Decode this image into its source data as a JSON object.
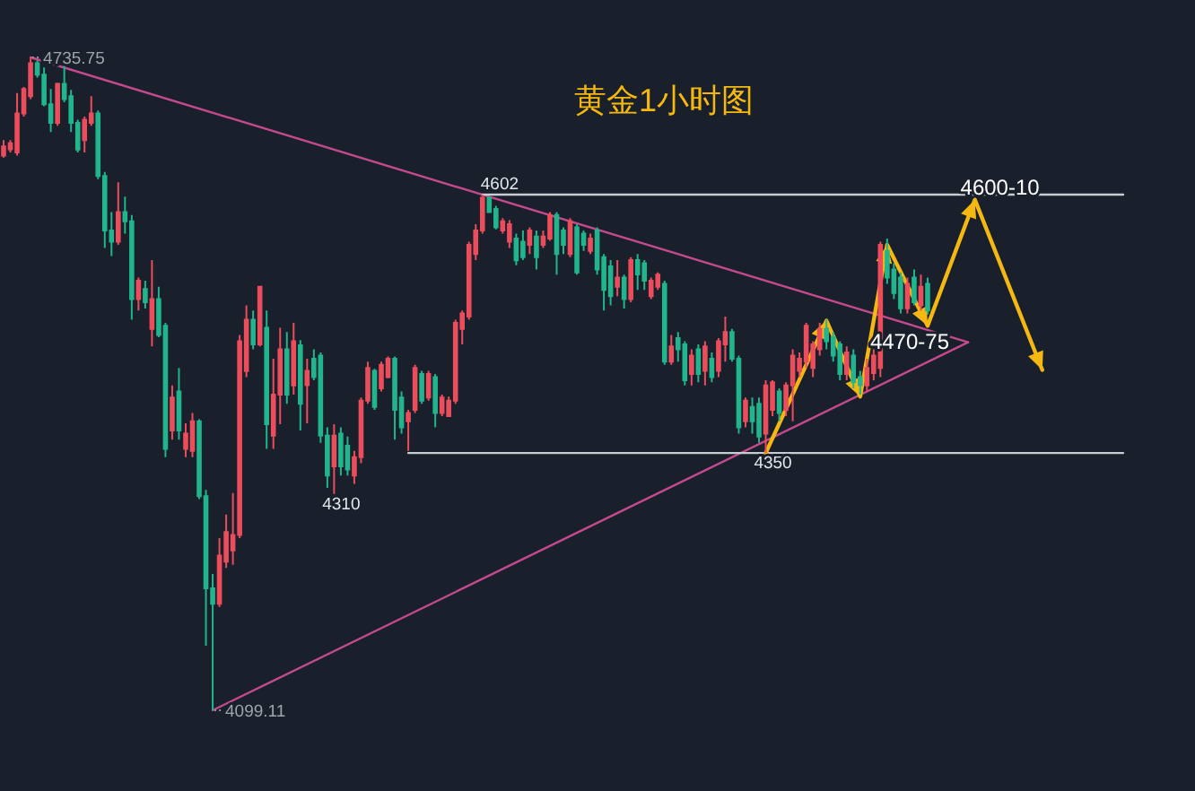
{
  "chart_data": {
    "type": "candlestick",
    "title": "黄金1小时图",
    "categories": [
      null,
      null,
      null,
      null,
      null,
      null,
      null,
      null,
      null,
      null,
      null,
      null,
      null,
      null,
      null,
      null,
      null,
      null,
      null,
      null,
      null,
      null,
      null,
      null,
      null,
      null,
      null,
      null,
      null,
      null,
      null,
      null,
      null,
      null,
      null,
      null,
      null,
      null,
      null,
      null,
      null,
      null,
      null,
      null,
      null,
      null,
      null,
      null,
      null,
      null,
      null,
      null,
      null,
      null,
      null,
      null,
      null,
      null,
      null,
      null,
      null,
      null,
      null,
      null,
      null,
      null,
      null,
      null,
      null,
      null,
      null,
      null,
      null,
      null,
      null,
      null,
      null,
      null,
      null,
      null,
      null,
      null,
      null,
      null,
      null,
      null,
      null,
      null,
      null,
      null,
      null,
      null,
      null,
      null,
      null,
      null,
      null,
      null,
      null,
      null,
      null,
      null,
      null,
      null,
      null,
      null,
      null,
      null,
      null,
      null,
      null,
      null,
      null,
      null,
      null,
      null,
      null,
      null,
      null,
      null,
      null,
      null,
      null,
      null,
      null,
      null,
      null,
      null,
      null,
      null,
      null,
      null,
      null,
      null,
      null,
      null,
      null,
      null,
      null,
      null,
      null,
      null,
      null,
      null,
      null,
      null,
      null,
      null,
      null,
      null,
      null,
      null,
      null,
      null,
      null,
      null,
      null,
      null,
      null,
      null,
      null,
      null,
      null,
      null,
      null,
      null,
      null
    ],
    "ohlc": [
      [
        4640,
        4655,
        4638,
        4649
      ],
      [
        4646,
        4655,
        4643,
        4652
      ],
      [
        4643,
        4701,
        4640,
        4681
      ],
      [
        4681,
        4707,
        4678,
        4705
      ],
      [
        4698,
        4735.75,
        4695,
        4730
      ],
      [
        4730,
        4733,
        4716,
        4719
      ],
      [
        4719,
        4726,
        4688,
        4690
      ],
      [
        4690,
        4705,
        4663,
        4672
      ],
      [
        4672,
        4711,
        4669,
        4710
      ],
      [
        4710,
        4730,
        4692,
        4695
      ],
      [
        4698,
        4704,
        4663,
        4672
      ],
      [
        4672,
        4675,
        4643,
        4646
      ],
      [
        4655,
        4678,
        4643,
        4675
      ],
      [
        4672,
        4698,
        4669,
        4681
      ],
      [
        4681,
        4684,
        4617,
        4620
      ],
      [
        4620,
        4624,
        4550,
        4567
      ],
      [
        4567,
        4585,
        4542,
        4556
      ],
      [
        4556,
        4614,
        4553,
        4585
      ],
      [
        4585,
        4600,
        4564,
        4576
      ],
      [
        4576,
        4582,
        4480,
        4500
      ],
      [
        4500,
        4521,
        4489,
        4518
      ],
      [
        4510,
        4518,
        4491,
        4497
      ],
      [
        4471,
        4538,
        4454,
        4500
      ],
      [
        4500,
        4512,
        4463,
        4465
      ],
      [
        4474,
        4477,
        4346,
        4354
      ],
      [
        4372,
        4416,
        4363,
        4404
      ],
      [
        4410,
        4433,
        4363,
        4372
      ],
      [
        4354,
        4379,
        4346,
        4369
      ],
      [
        4352,
        4389,
        4346,
        4381
      ],
      [
        4381,
        4383,
        4305,
        4308
      ],
      [
        4308,
        4314,
        4162,
        4218
      ],
      [
        4218,
        4232,
        4099.11,
        4203
      ],
      [
        4203,
        4267,
        4200,
        4250
      ],
      [
        4244,
        4290,
        4238,
        4273
      ],
      [
        4255,
        4311,
        4241,
        4270
      ],
      [
        4270,
        4465,
        4267,
        4459
      ],
      [
        4430,
        4494,
        4424,
        4480
      ],
      [
        4480,
        4489,
        4451,
        4456
      ],
      [
        4456,
        4513,
        4454,
        4512
      ],
      [
        4472,
        4489,
        4354,
        4378
      ],
      [
        4367,
        4442,
        4354,
        4407
      ],
      [
        4407,
        4472,
        4378,
        4451
      ],
      [
        4451,
        4468,
        4398,
        4407
      ],
      [
        4416,
        4477,
        4407,
        4459
      ],
      [
        4455,
        4460,
        4372,
        4398
      ],
      [
        4416,
        4442,
        4379,
        4430
      ],
      [
        4442,
        4451,
        4421,
        4424
      ],
      [
        4445,
        4448,
        4360,
        4367
      ],
      [
        4367,
        4375,
        4316,
        4328
      ],
      [
        4337,
        4378,
        4310,
        4367
      ],
      [
        4369,
        4375,
        4328,
        4337
      ],
      [
        4357,
        4366,
        4328,
        4334
      ],
      [
        4328,
        4352,
        4320,
        4346
      ],
      [
        4346,
        4404,
        4340,
        4401
      ],
      [
        4401,
        4439,
        4398,
        4433
      ],
      [
        4430,
        4432,
        4392,
        4395
      ],
      [
        4413,
        4439,
        4410,
        4436
      ],
      [
        4424,
        4444,
        4423,
        4442
      ],
      [
        4442,
        4444,
        4363,
        4392
      ],
      [
        4404,
        4410,
        4369,
        4375
      ],
      [
        4381,
        4392,
        4352,
        4389
      ],
      [
        4392,
        4436,
        4389,
        4433
      ],
      [
        4427,
        4430,
        4398,
        4401
      ],
      [
        4404,
        4430,
        4401,
        4427
      ],
      [
        4424,
        4427,
        4375,
        4389
      ],
      [
        4389,
        4407,
        4386,
        4404
      ],
      [
        4386,
        4405,
        4385,
        4401
      ],
      [
        4401,
        4480,
        4398,
        4477
      ],
      [
        4471,
        4489,
        4456,
        4486
      ],
      [
        4483,
        4556,
        4480,
        4553
      ],
      [
        4544,
        4573,
        4538,
        4567
      ],
      [
        4567,
        4602,
        4564,
        4599
      ],
      [
        4599,
        4600,
        4584,
        4585
      ],
      [
        4588,
        4591,
        4568,
        4570
      ],
      [
        4567,
        4579,
        4564,
        4576
      ],
      [
        4556,
        4577,
        4550,
        4573
      ],
      [
        4559,
        4564,
        4533,
        4538
      ],
      [
        4556,
        4567,
        4538,
        4541
      ],
      [
        4553,
        4570,
        4544,
        4567
      ],
      [
        4561,
        4567,
        4529,
        4541
      ],
      [
        4553,
        4567,
        4550,
        4561
      ],
      [
        4559,
        4585,
        4557,
        4582
      ],
      [
        4582,
        4585,
        4524,
        4544
      ],
      [
        4567,
        4570,
        4544,
        4553
      ],
      [
        4544,
        4579,
        4541,
        4576
      ],
      [
        4570,
        4573,
        4524,
        4526
      ],
      [
        4564,
        4567,
        4547,
        4553
      ],
      [
        4547,
        4564,
        4544,
        4559
      ],
      [
        4567,
        4570,
        4524,
        4529
      ],
      [
        4541,
        4544,
        4489,
        4509
      ],
      [
        4532,
        4538,
        4494,
        4503
      ],
      [
        4512,
        4538,
        4503,
        4521
      ],
      [
        4521,
        4524,
        4491,
        4500
      ],
      [
        4500,
        4541,
        4497,
        4538
      ],
      [
        4538,
        4544,
        4509,
        4524
      ],
      [
        4535,
        4538,
        4509,
        4518
      ],
      [
        4503,
        4521,
        4500,
        4518
      ],
      [
        4512,
        4526,
        4509,
        4524
      ],
      [
        4515,
        4518,
        4436,
        4439
      ],
      [
        4439,
        4465,
        4436,
        4454
      ],
      [
        4462,
        4468,
        4439,
        4451
      ],
      [
        4456,
        4459,
        4416,
        4421
      ],
      [
        4427,
        4451,
        4416,
        4445
      ],
      [
        4451,
        4456,
        4419,
        4427
      ],
      [
        4430,
        4459,
        4416,
        4454
      ],
      [
        4442,
        4448,
        4419,
        4424
      ],
      [
        4430,
        4462,
        4424,
        4459
      ],
      [
        4456,
        4483,
        4439,
        4468
      ],
      [
        4468,
        4471,
        4439,
        4442
      ],
      [
        4442,
        4445,
        4369,
        4375
      ],
      [
        4381,
        4404,
        4375,
        4401
      ],
      [
        4395,
        4404,
        4369,
        4381
      ],
      [
        4398,
        4404,
        4360,
        4366
      ],
      [
        4369,
        4421,
        4350,
        4416
      ],
      [
        4392,
        4421,
        4386,
        4419
      ],
      [
        4410,
        4413,
        4381,
        4389
      ],
      [
        4392,
        4419,
        4386,
        4416
      ],
      [
        4416,
        4451,
        4381,
        4445
      ],
      [
        4430,
        4448,
        4424,
        4442
      ],
      [
        4439,
        4477,
        4433,
        4474
      ],
      [
        4433,
        4459,
        4424,
        4456
      ],
      [
        4451,
        4477,
        4445,
        4471
      ],
      [
        4471,
        4480,
        4451,
        4459
      ],
      [
        4463,
        4468,
        4439,
        4445
      ],
      [
        4456,
        4459,
        4421,
        4427
      ],
      [
        4427,
        4454,
        4421,
        4448
      ],
      [
        4445,
        4451,
        4413,
        4419
      ],
      [
        4424,
        4430,
        4407,
        4416
      ],
      [
        4416,
        4442,
        4410,
        4433
      ],
      [
        4428,
        4451,
        4421,
        4445
      ],
      [
        4433,
        4556,
        4424,
        4553
      ],
      [
        4547,
        4559,
        4515,
        4521
      ],
      [
        4529,
        4535,
        4500,
        4506
      ],
      [
        4521,
        4526,
        4486,
        4491
      ],
      [
        4491,
        4521,
        4486,
        4515
      ],
      [
        4521,
        4529,
        4494,
        4497
      ],
      [
        4494,
        4524,
        4489,
        4512
      ],
      [
        4515,
        4521,
        4485,
        4489
      ],
      null,
      null,
      null,
      null,
      null,
      null,
      null,
      null,
      null,
      null,
      null,
      null,
      null,
      null,
      null,
      null,
      null,
      null,
      null,
      null,
      null,
      null,
      null,
      null,
      null,
      null,
      null,
      null,
      null
    ],
    "colors": [
      "#eb4d5c",
      "#eb4d5c",
      "#eb4d5c",
      "#eb4d5c",
      "#eb4d5c",
      "#22b48c",
      "#22b48c",
      "#22b48c",
      "#eb4d5c",
      "#22b48c",
      "#22b48c",
      "#22b48c",
      "#eb4d5c",
      "#eb4d5c",
      "#22b48c",
      "#22b48c",
      "#22b48c",
      "#eb4d5c",
      "#22b48c",
      "#22b48c",
      "#eb4d5c",
      "#22b48c",
      "#eb4d5c",
      "#22b48c",
      "#22b48c",
      "#eb4d5c",
      "#22b48c",
      "#eb4d5c",
      "#eb4d5c",
      "#22b48c",
      "#22b48c",
      "#22b48c",
      "#eb4d5c",
      "#eb4d5c",
      "#eb4d5c",
      "#eb4d5c",
      "#eb4d5c",
      "#22b48c",
      "#eb4d5c",
      "#22b48c",
      "#eb4d5c",
      "#eb4d5c",
      "#22b48c",
      "#eb4d5c",
      "#22b48c",
      "#eb4d5c",
      "#22b48c",
      "#22b48c",
      "#22b48c",
      "#eb4d5c",
      "#22b48c",
      "#22b48c",
      "#eb4d5c",
      "#eb4d5c",
      "#eb4d5c",
      "#22b48c",
      "#eb4d5c",
      "#eb4d5c",
      "#22b48c",
      "#22b48c",
      "#eb4d5c",
      "#eb4d5c",
      "#22b48c",
      "#eb4d5c",
      "#22b48c",
      "#eb4d5c",
      "#eb4d5c",
      "#eb4d5c",
      "#eb4d5c",
      "#eb4d5c",
      "#eb4d5c",
      "#eb4d5c",
      "#22b48c",
      "#22b48c",
      "#eb4d5c",
      "#eb4d5c",
      "#22b48c",
      "#22b48c",
      "#eb4d5c",
      "#22b48c",
      "#eb4d5c",
      "#eb4d5c",
      "#22b48c",
      "#22b48c",
      "#eb4d5c",
      "#22b48c",
      "#22b48c",
      "#eb4d5c",
      "#22b48c",
      "#22b48c",
      "#22b48c",
      "#eb4d5c",
      "#22b48c",
      "#eb4d5c",
      "#22b48c",
      "#22b48c",
      "#eb4d5c",
      "#eb4d5c",
      "#22b48c",
      "#eb4d5c",
      "#22b48c",
      "#22b48c",
      "#eb4d5c",
      "#22b48c",
      "#eb4d5c",
      "#22b48c",
      "#eb4d5c",
      "#eb4d5c",
      "#22b48c",
      "#22b48c",
      "#eb4d5c",
      "#22b48c",
      "#22b48c",
      "#eb4d5c",
      "#eb4d5c",
      "#22b48c",
      "#eb4d5c",
      "#eb4d5c",
      "#eb4d5c",
      "#eb4d5c",
      "#eb4d5c",
      "#eb4d5c",
      "#22b48c",
      "#22b48c",
      "#22b48c",
      "#eb4d5c",
      "#22b48c",
      "#22b48c",
      "#eb4d5c",
      "#eb4d5c",
      "#eb4d5c",
      "#22b48c",
      "#22b48c",
      "#22b48c",
      "#eb4d5c",
      "#22b48c",
      "#eb4d5c",
      "#22b48c",
      null,
      null,
      null,
      null,
      null,
      null,
      null,
      null,
      null,
      null,
      null,
      null,
      null,
      null,
      null,
      null,
      null,
      null,
      null,
      null,
      null,
      null,
      null,
      null,
      null,
      null,
      null,
      null,
      null
    ],
    "value_labels": [
      null,
      null,
      null,
      null,
      "4735.75",
      null,
      null,
      null,
      null,
      null,
      null,
      null,
      null,
      null,
      null,
      null,
      null,
      null,
      null,
      null,
      null,
      null,
      null,
      null,
      null,
      null,
      null,
      null,
      null,
      null,
      null,
      "4099.11",
      null,
      null,
      null,
      null,
      null,
      null,
      null,
      null,
      null,
      null,
      null,
      null,
      null,
      null,
      null,
      null,
      null,
      "4310",
      null,
      null,
      null,
      null,
      null,
      null,
      null,
      null,
      null,
      null,
      null,
      null,
      null,
      null,
      null,
      null,
      null,
      null,
      null,
      null,
      null,
      "4602",
      null,
      null,
      null,
      null,
      null,
      null,
      null,
      null,
      null,
      null,
      null,
      null,
      null,
      null,
      null,
      null,
      null,
      null,
      null,
      null,
      null,
      null,
      null,
      null,
      null,
      null,
      null,
      null,
      null,
      null,
      null,
      null,
      null,
      null,
      null,
      null,
      null,
      null,
      null,
      null,
      null,
      "4350",
      null,
      null,
      null,
      null,
      null,
      null,
      null,
      null,
      null,
      null,
      null,
      null,
      null,
      null,
      null,
      null,
      null,
      null,
      null,
      null,
      null,
      null,
      null,
      null,
      null,
      null,
      null,
      null,
      null,
      null,
      null,
      null,
      null,
      null,
      null,
      null,
      null,
      null,
      null,
      null,
      null,
      null,
      null,
      null,
      null,
      null,
      null,
      null,
      null,
      null,
      null,
      null,
      null
    ],
    "series": [
      {
        "type": "line",
        "color": "#c44a8d",
        "values": [
          null,
          null,
          null,
          null,
          4735.75,
          null,
          null,
          null,
          null,
          null,
          null,
          null,
          null,
          null,
          null,
          null,
          null,
          null,
          null,
          null,
          null,
          null,
          null,
          null,
          null,
          null,
          null,
          null,
          null,
          null,
          null,
          null,
          null,
          null,
          null,
          null,
          null,
          null,
          null,
          null,
          null,
          null,
          null,
          null,
          null,
          null,
          null,
          null,
          null,
          null,
          null,
          null,
          null,
          null,
          null,
          null,
          null,
          null,
          null,
          null,
          null,
          null,
          null,
          null,
          null,
          null,
          null,
          null,
          null,
          null,
          null,
          null,
          null,
          null,
          null,
          null,
          null,
          null,
          null,
          null,
          null,
          null,
          null,
          null,
          null,
          null,
          null,
          null,
          null,
          null,
          null,
          null,
          null,
          null,
          null,
          null,
          null,
          null,
          null,
          null,
          null,
          null,
          null,
          null,
          null,
          null,
          null,
          null,
          null,
          null,
          null,
          null,
          null,
          null,
          null,
          null,
          null,
          null,
          null,
          null,
          null,
          null,
          null,
          null,
          null,
          null,
          null,
          null,
          null,
          null,
          null,
          null,
          null,
          null,
          null,
          null,
          null,
          null,
          null,
          null,
          null,
          null,
          null,
          4458,
          null,
          null,
          null,
          null,
          null,
          null,
          null,
          null,
          null,
          null,
          null,
          null,
          null,
          null,
          null,
          null,
          null,
          null,
          null,
          null,
          null,
          null,
          null
        ]
      },
      {
        "type": "line",
        "color": "#c44a8d",
        "values": [
          null,
          null,
          null,
          null,
          null,
          null,
          null,
          null,
          null,
          null,
          null,
          null,
          null,
          null,
          null,
          null,
          null,
          null,
          null,
          null,
          null,
          null,
          null,
          null,
          null,
          null,
          null,
          null,
          null,
          null,
          null,
          4099.11,
          null,
          null,
          null,
          null,
          null,
          null,
          null,
          null,
          null,
          null,
          null,
          null,
          null,
          null,
          null,
          null,
          null,
          null,
          null,
          null,
          null,
          null,
          null,
          null,
          null,
          null,
          null,
          null,
          null,
          null,
          null,
          null,
          null,
          null,
          null,
          null,
          null,
          null,
          null,
          null,
          null,
          null,
          null,
          null,
          null,
          null,
          null,
          null,
          null,
          null,
          null,
          null,
          null,
          null,
          null,
          null,
          null,
          null,
          null,
          null,
          null,
          null,
          null,
          null,
          null,
          null,
          null,
          null,
          null,
          null,
          null,
          null,
          null,
          null,
          null,
          null,
          null,
          null,
          null,
          null,
          null,
          null,
          null,
          null,
          null,
          null,
          null,
          null,
          null,
          null,
          null,
          null,
          null,
          null,
          null,
          null,
          null,
          null,
          null,
          null,
          null,
          null,
          null,
          null,
          null,
          null,
          null,
          null,
          null,
          null,
          null,
          4458,
          null,
          null,
          null,
          null,
          null,
          null,
          null,
          null,
          null,
          null,
          null,
          null,
          null,
          null,
          null,
          null,
          null,
          null,
          null,
          null,
          null,
          null,
          null
        ]
      },
      {
        "type": "line",
        "color": "#c8ccd3",
        "values": [
          null,
          null,
          null,
          null,
          null,
          null,
          null,
          null,
          null,
          null,
          null,
          null,
          null,
          null,
          null,
          null,
          null,
          null,
          null,
          null,
          null,
          null,
          null,
          null,
          null,
          null,
          null,
          null,
          null,
          null,
          null,
          null,
          null,
          null,
          null,
          null,
          null,
          null,
          null,
          null,
          null,
          null,
          null,
          null,
          null,
          null,
          null,
          null,
          null,
          null,
          null,
          null,
          null,
          null,
          null,
          null,
          null,
          null,
          null,
          null,
          null,
          null,
          null,
          null,
          null,
          null,
          null,
          null,
          null,
          null,
          null,
          4602,
          null,
          null,
          null,
          null,
          null,
          null,
          null,
          null,
          null,
          null,
          null,
          null,
          null,
          null,
          null,
          null,
          null,
          null,
          null,
          null,
          null,
          null,
          null,
          null,
          null,
          null,
          null,
          null,
          null,
          null,
          null,
          null,
          null,
          null,
          null,
          null,
          null,
          null,
          null,
          null,
          null,
          null,
          null,
          null,
          null,
          null,
          null,
          null,
          null,
          null,
          null,
          null,
          null,
          null,
          null,
          null,
          null,
          null,
          null,
          null,
          null,
          null,
          null,
          null,
          null,
          null,
          null,
          null,
          null,
          null,
          null,
          null,
          null,
          null,
          null,
          null,
          null,
          null,
          null,
          null,
          null,
          null,
          null,
          null,
          null,
          null,
          null,
          null,
          null,
          null,
          null,
          null,
          null,
          null,
          4602
        ]
      },
      {
        "type": "line",
        "color": "#c8ccd3",
        "values": [
          null,
          null,
          null,
          null,
          null,
          null,
          null,
          null,
          null,
          null,
          null,
          null,
          null,
          null,
          null,
          null,
          null,
          null,
          null,
          null,
          null,
          null,
          null,
          null,
          null,
          null,
          null,
          null,
          null,
          null,
          null,
          null,
          null,
          null,
          null,
          null,
          null,
          null,
          null,
          null,
          null,
          null,
          null,
          null,
          null,
          null,
          null,
          null,
          null,
          null,
          null,
          null,
          null,
          null,
          null,
          null,
          null,
          null,
          null,
          null,
          4350,
          null,
          null,
          null,
          null,
          null,
          null,
          null,
          null,
          null,
          null,
          null,
          null,
          null,
          null,
          null,
          null,
          null,
          null,
          null,
          null,
          null,
          null,
          null,
          null,
          null,
          null,
          null,
          null,
          null,
          null,
          null,
          null,
          null,
          null,
          null,
          null,
          null,
          null,
          null,
          null,
          null,
          null,
          null,
          null,
          null,
          null,
          null,
          null,
          null,
          null,
          null,
          null,
          null,
          null,
          null,
          null,
          null,
          null,
          null,
          null,
          null,
          null,
          null,
          null,
          null,
          null,
          null,
          null,
          null,
          null,
          null,
          null,
          null,
          null,
          null,
          null,
          null,
          null,
          null,
          null,
          null,
          null,
          null,
          null,
          null,
          null,
          null,
          null,
          null,
          null,
          null,
          null,
          null,
          null,
          null,
          null,
          null,
          null,
          null,
          null,
          null,
          null,
          null,
          null,
          null,
          4350
        ]
      },
      {
        "type": "line",
        "color": "#f5b812",
        "values": [
          null,
          null,
          null,
          null,
          null,
          null,
          null,
          null,
          null,
          null,
          null,
          null,
          null,
          null,
          null,
          null,
          null,
          null,
          null,
          null,
          null,
          null,
          null,
          null,
          null,
          null,
          null,
          null,
          null,
          null,
          null,
          null,
          null,
          null,
          null,
          null,
          null,
          null,
          null,
          null,
          null,
          null,
          null,
          null,
          null,
          null,
          null,
          null,
          null,
          null,
          null,
          null,
          null,
          null,
          null,
          null,
          null,
          null,
          null,
          null,
          null,
          null,
          null,
          null,
          null,
          null,
          null,
          null,
          null,
          null,
          null,
          null,
          null,
          null,
          null,
          null,
          null,
          null,
          null,
          null,
          null,
          null,
          null,
          null,
          null,
          null,
          null,
          null,
          null,
          null,
          null,
          null,
          null,
          null,
          null,
          null,
          null,
          null,
          null,
          null,
          null,
          null,
          null,
          null,
          null,
          null,
          null,
          null,
          null,
          null,
          null,
          null,
          null,
          4350,
          null,
          null,
          null,
          null,
          null,
          null,
          null,
          null,
          4479,
          null,
          null,
          null,
          null,
          4405,
          null,
          null,
          null,
          4553,
          null,
          null,
          null,
          null,
          null,
          4474,
          null,
          null,
          null,
          null,
          null,
          null,
          4597,
          null,
          null,
          null,
          null,
          null,
          null,
          null,
          null,
          null,
          4431,
          null,
          null,
          null,
          null,
          null,
          null,
          null,
          null,
          null,
          null,
          null,
          null
        ],
        "value_labels": [
          null,
          null,
          null,
          null,
          null,
          null,
          null,
          null,
          null,
          null,
          null,
          null,
          null,
          null,
          null,
          null,
          null,
          null,
          null,
          null,
          null,
          null,
          null,
          null,
          null,
          null,
          null,
          null,
          null,
          null,
          null,
          null,
          null,
          null,
          null,
          null,
          null,
          null,
          null,
          null,
          null,
          null,
          null,
          null,
          null,
          null,
          null,
          null,
          null,
          null,
          null,
          null,
          null,
          null,
          null,
          null,
          null,
          null,
          null,
          null,
          null,
          null,
          null,
          null,
          null,
          null,
          null,
          null,
          null,
          null,
          null,
          null,
          null,
          null,
          null,
          null,
          null,
          null,
          null,
          null,
          null,
          null,
          null,
          null,
          null,
          null,
          null,
          null,
          null,
          null,
          null,
          null,
          null,
          null,
          null,
          null,
          null,
          null,
          null,
          null,
          null,
          null,
          null,
          null,
          null,
          null,
          null,
          null,
          null,
          null,
          null,
          null,
          null,
          null,
          null,
          null,
          null,
          null,
          null,
          null,
          null,
          null,
          null,
          null,
          null,
          null,
          null,
          null,
          null,
          null,
          null,
          null,
          null,
          null,
          null,
          null,
          null,
          "4470-75",
          null,
          null,
          null,
          null,
          null,
          null,
          "4600-10",
          null,
          null,
          null,
          null,
          null,
          null,
          null,
          null,
          null,
          null,
          null,
          null,
          null,
          null,
          null,
          null,
          null,
          null,
          null,
          null,
          null,
          null
        ]
      }
    ]
  }
}
